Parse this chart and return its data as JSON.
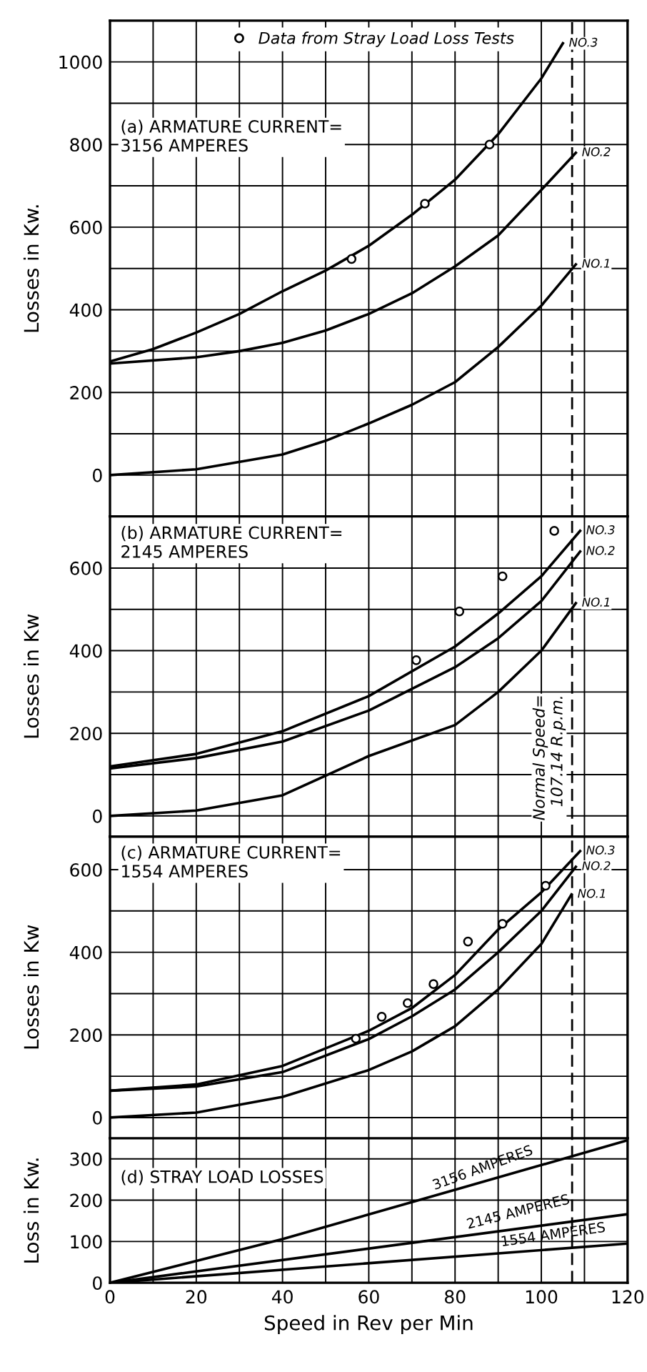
{
  "chart_data": [
    {
      "type": "line",
      "title": "(a) ARMATURE CURRENT=\n3156 AMPERES",
      "ylabel": "Losses in Kw.",
      "tick_labels": "y",
      "grid": true,
      "legend": "top",
      "xlim": [
        0,
        120
      ],
      "xticks": [
        0,
        {
          "value": 10,
          "label": null
        },
        20,
        {
          "value": 30,
          "label": null
        },
        40,
        {
          "value": 50,
          "label": null
        },
        60,
        {
          "value": 70,
          "label": null
        },
        80,
        {
          "value": 90,
          "label": null
        },
        100,
        {
          "value": 110,
          "label": null
        },
        120
      ],
      "ylim": [
        -100,
        1100
      ],
      "yticks": [
        0,
        {
          "value": 100,
          "label": null
        },
        200,
        {
          "value": 300,
          "label": null
        },
        400,
        {
          "value": 500,
          "label": null
        },
        600,
        {
          "value": 700,
          "label": null
        },
        800,
        {
          "value": 900,
          "label": null
        },
        1000
      ],
      "ref_lines": [
        {
          "axis": "x",
          "value": 107.14,
          "line_style": "dashed"
        }
      ],
      "series": [
        {
          "name": "NO.1",
          "color": "#000000",
          "x": [
            0,
            20,
            40,
            50,
            60,
            70,
            80,
            90,
            100,
            108
          ],
          "values": [
            0,
            14,
            50,
            83,
            125,
            170,
            225,
            310,
            410,
            510
          ]
        },
        {
          "name": "NO.2",
          "color": "#000000",
          "x": [
            0,
            20,
            30,
            40,
            50,
            60,
            70,
            80,
            90,
            100,
            108
          ],
          "values": [
            270,
            285,
            300,
            320,
            350,
            390,
            440,
            505,
            580,
            690,
            780
          ]
        },
        {
          "name": "NO.3",
          "color": "#000000",
          "x": [
            0,
            10,
            20,
            30,
            40,
            50,
            60,
            70,
            80,
            90,
            100,
            105
          ],
          "values": [
            275,
            305,
            345,
            390,
            445,
            495,
            555,
            630,
            715,
            825,
            960,
            1045
          ]
        },
        {
          "name": "Data from Stray Load Loss Tests",
          "type": "scatter",
          "marker": "circle",
          "color": "#000000",
          "x": [
            56,
            73,
            88
          ],
          "values": [
            523,
            657,
            800
          ]
        }
      ]
    },
    {
      "type": "line",
      "title": "(b) ARMATURE CURRENT=\n2145 AMPERES",
      "ylabel": "Losses in Kw",
      "tick_labels": "y",
      "grid": true,
      "xlim": [
        0,
        120
      ],
      "xticks": [
        0,
        {
          "value": 10,
          "label": null
        },
        20,
        {
          "value": 30,
          "label": null
        },
        40,
        {
          "value": 50,
          "label": null
        },
        60,
        {
          "value": 70,
          "label": null
        },
        80,
        {
          "value": 90,
          "label": null
        },
        100,
        {
          "value": 110,
          "label": null
        },
        120
      ],
      "ylim": [
        -50,
        725
      ],
      "yticks": [
        0,
        {
          "value": 100,
          "label": null
        },
        200,
        {
          "value": 300,
          "label": null
        },
        400,
        {
          "value": 500,
          "label": null
        },
        600
      ],
      "ref_lines": [
        {
          "axis": "x",
          "value": 107.14,
          "line_style": "dashed",
          "label": "Normal Speed=\n107.14 R.p.m."
        }
      ],
      "series": [
        {
          "name": "NO.1",
          "color": "#000000",
          "x": [
            0,
            20,
            40,
            60,
            80,
            90,
            100,
            108
          ],
          "values": [
            0,
            13,
            50,
            145,
            220,
            300,
            400,
            515
          ]
        },
        {
          "name": "NO.2",
          "color": "#000000",
          "x": [
            0,
            20,
            40,
            60,
            80,
            90,
            100,
            109
          ],
          "values": [
            115,
            140,
            180,
            255,
            360,
            430,
            520,
            640
          ]
        },
        {
          "name": "NO.3",
          "color": "#000000",
          "x": [
            0,
            20,
            40,
            60,
            80,
            90,
            100,
            109
          ],
          "values": [
            120,
            150,
            205,
            290,
            410,
            490,
            580,
            690
          ]
        },
        {
          "type": "scatter",
          "marker": "circle",
          "color": "#000000",
          "x": [
            71,
            81,
            91,
            103
          ],
          "values": [
            377,
            495,
            580,
            690
          ]
        }
      ]
    },
    {
      "type": "line",
      "title": "(c) ARMATURE CURRENT=\n1554 AMPERES",
      "ylabel": "Losses in Kw",
      "tick_labels": "y",
      "grid": true,
      "xlim": [
        0,
        120
      ],
      "xticks": [
        0,
        {
          "value": 10,
          "label": null
        },
        20,
        {
          "value": 30,
          "label": null
        },
        40,
        {
          "value": 50,
          "label": null
        },
        60,
        {
          "value": 70,
          "label": null
        },
        80,
        {
          "value": 90,
          "label": null
        },
        100,
        {
          "value": 110,
          "label": null
        },
        120
      ],
      "ylim": [
        -50,
        680
      ],
      "yticks": [
        0,
        {
          "value": 100,
          "label": null
        },
        200,
        {
          "value": 300,
          "label": null
        },
        400,
        {
          "value": 500,
          "label": null
        },
        600
      ],
      "ref_lines": [
        {
          "axis": "x",
          "value": 107.14,
          "line_style": "dashed"
        }
      ],
      "series": [
        {
          "name": "NO.1",
          "color": "#000000",
          "x": [
            0,
            20,
            40,
            60,
            70,
            80,
            90,
            100,
            107
          ],
          "values": [
            0,
            12,
            50,
            115,
            160,
            221,
            310,
            420,
            540
          ]
        },
        {
          "name": "NO.2",
          "color": "#000000",
          "x": [
            0,
            20,
            40,
            60,
            70,
            80,
            90,
            100,
            108
          ],
          "values": [
            65,
            75,
            110,
            190,
            245,
            310,
            400,
            500,
            607
          ]
        },
        {
          "name": "NO.3",
          "color": "#000000",
          "x": [
            0,
            20,
            40,
            60,
            70,
            80,
            90,
            100,
            109
          ],
          "values": [
            65,
            80,
            125,
            210,
            265,
            345,
            455,
            545,
            645
          ]
        },
        {
          "type": "scatter",
          "marker": "circle",
          "color": "#000000",
          "x": [
            57,
            63,
            69,
            75,
            83,
            91,
            101
          ],
          "values": [
            191,
            244,
            277,
            323,
            426,
            469,
            561
          ]
        }
      ]
    },
    {
      "type": "line",
      "title": "(d) STRAY LOAD LOSSES",
      "ylabel": "Loss in Kw.",
      "xlabel": "Speed in Rev per Min",
      "grid": true,
      "xlim": [
        0,
        120
      ],
      "xticks": [
        0,
        {
          "value": 10,
          "label": null
        },
        20,
        {
          "value": 30,
          "label": null
        },
        40,
        {
          "value": 50,
          "label": null
        },
        60,
        {
          "value": 70,
          "label": null
        },
        80,
        {
          "value": 90,
          "label": null
        },
        100,
        {
          "value": 110,
          "label": null
        },
        120
      ],
      "ylim": [
        0,
        350
      ],
      "yticks": [
        0,
        100,
        200,
        300
      ],
      "ref_lines": [
        {
          "axis": "x",
          "value": 107.14,
          "line_style": "dashed"
        }
      ],
      "series": [
        {
          "name": "3156 AMPERES",
          "color": "#000000",
          "x": [
            0,
            40,
            80,
            120
          ],
          "values": [
            0,
            106,
            225,
            345
          ]
        },
        {
          "name": "2145 AMPERES",
          "color": "#000000",
          "x": [
            0,
            120
          ],
          "values": [
            0,
            166
          ]
        },
        {
          "name": "1554 AMPERES",
          "color": "#000000",
          "x": [
            0,
            120
          ],
          "values": [
            0,
            95
          ]
        }
      ]
    }
  ]
}
